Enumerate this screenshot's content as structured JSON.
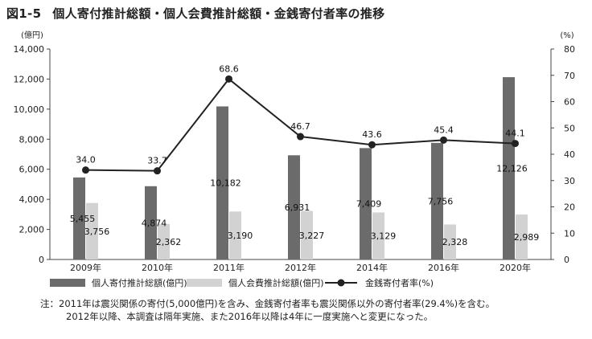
{
  "figure": {
    "number": "図1-5",
    "title": "個人寄付推計総額・個人会費推計総額・金銭寄付者率の推移"
  },
  "notes": {
    "prefix": "注：",
    "line1": "2011年は震災関係の寄付(5,000億円)を含み、金銭寄付者率も震災関係以外の寄付者率(29.4%)を含む。",
    "line2": "2012年以降、本調査は隔年実施、また2016年以降は4年に一度実施へと変更になった。"
  },
  "chart_data": {
    "type": "bar",
    "categories": [
      "2009年",
      "2010年",
      "2011年",
      "2012年",
      "2014年",
      "2016年",
      "2020年"
    ],
    "y_left": {
      "unit_label": "(億円)",
      "ylim": [
        0,
        14000
      ],
      "ticks": [
        0,
        2000,
        4000,
        6000,
        8000,
        10000,
        12000,
        14000
      ],
      "tick_labels": [
        "0",
        "2,000",
        "4,000",
        "6,000",
        "8,000",
        "10,000",
        "12,000",
        "14,000"
      ]
    },
    "y_right": {
      "unit_label": "(%)",
      "ylim": [
        0,
        80
      ],
      "ticks": [
        0,
        10,
        20,
        30,
        40,
        50,
        60,
        70,
        80
      ],
      "tick_labels": [
        "0",
        "10",
        "20",
        "30",
        "40",
        "50",
        "60",
        "70",
        "80"
      ]
    },
    "grid": false,
    "legend_position": "bottom",
    "series": [
      {
        "name": "個人寄付推計総額(億円)",
        "kind": "bar",
        "axis": "left",
        "color": "#6b6b6b",
        "values": [
          5455,
          4874,
          10182,
          6931,
          7409,
          7756,
          12126
        ],
        "value_labels": [
          "5,455",
          "4,874",
          "10,182",
          "6,931",
          "7,409",
          "7,756",
          "12,126"
        ]
      },
      {
        "name": "個人会費推計総額(億円)",
        "kind": "bar",
        "axis": "left",
        "color": "#d2d2d2",
        "values": [
          3756,
          2362,
          3190,
          3227,
          3129,
          2328,
          2989
        ],
        "value_labels": [
          "3,756",
          "2,362",
          "3,190",
          "3,227",
          "3,129",
          "2,328",
          "2,989"
        ]
      },
      {
        "name": "金銭寄付者率(%)",
        "kind": "line",
        "axis": "right",
        "color": "#222222",
        "values": [
          34.0,
          33.7,
          68.6,
          46.7,
          43.6,
          45.4,
          44.1
        ],
        "value_labels": [
          "34.0",
          "33.7",
          "68.6",
          "46.7",
          "43.6",
          "45.4",
          "44.1"
        ]
      }
    ]
  }
}
